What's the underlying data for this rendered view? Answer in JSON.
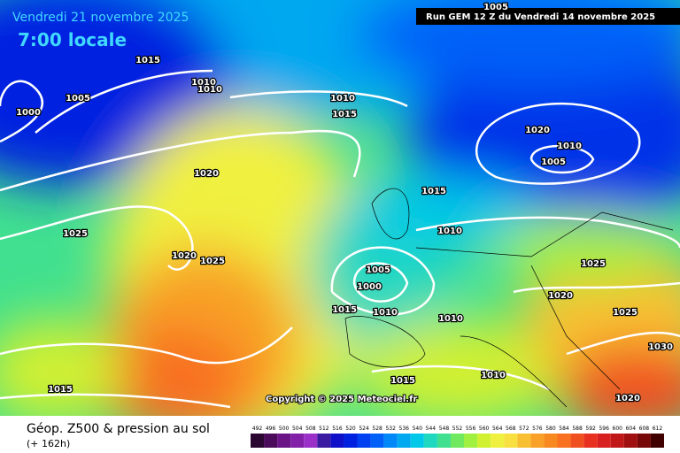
{
  "header": {
    "date": "Vendredi 21 novembre 2025",
    "time": "7:00 locale",
    "run": "Run GEM 12 Z du Vendredi 14 novembre 2025"
  },
  "isobar_labels": [
    "1005",
    "1015",
    "1010",
    "1010",
    "1005",
    "1000",
    "1010",
    "1015",
    "1020",
    "1010",
    "1005",
    "1020",
    "1015",
    "1010",
    "1025",
    "1020",
    "1025",
    "1025",
    "1005",
    "1000",
    "1020",
    "1015",
    "1010",
    "1010",
    "1025",
    "1030",
    "1015",
    "1010",
    "1015",
    "1020"
  ],
  "copyright": "Copyright © 2025 Meteociel.fr",
  "footer": {
    "title": "Géop. Z500 & pression au sol",
    "lead": "(+ 162h)"
  },
  "legend": {
    "levels": [
      492,
      496,
      500,
      504,
      508,
      512,
      516,
      520,
      524,
      528,
      532,
      536,
      540,
      544,
      548,
      552,
      556,
      560,
      564,
      568,
      572,
      576,
      580,
      584,
      588,
      592,
      596,
      600,
      604,
      608,
      612
    ],
    "colors": [
      "#2a0630",
      "#4b0a5a",
      "#6a1488",
      "#8220a8",
      "#9a30c8",
      "#3a1aa0",
      "#1010c8",
      "#0020e0",
      "#0040f0",
      "#0060f8",
      "#0088f8",
      "#00a8f0",
      "#00c8e8",
      "#20d8c0",
      "#40e090",
      "#70e860",
      "#a0f040",
      "#d0f030",
      "#f0f040",
      "#f8e040",
      "#f8c030",
      "#f8a028",
      "#f88820",
      "#f87020",
      "#f05020",
      "#e83020",
      "#d82020",
      "#c01818",
      "#a01010",
      "#780808",
      "#400000"
    ]
  }
}
